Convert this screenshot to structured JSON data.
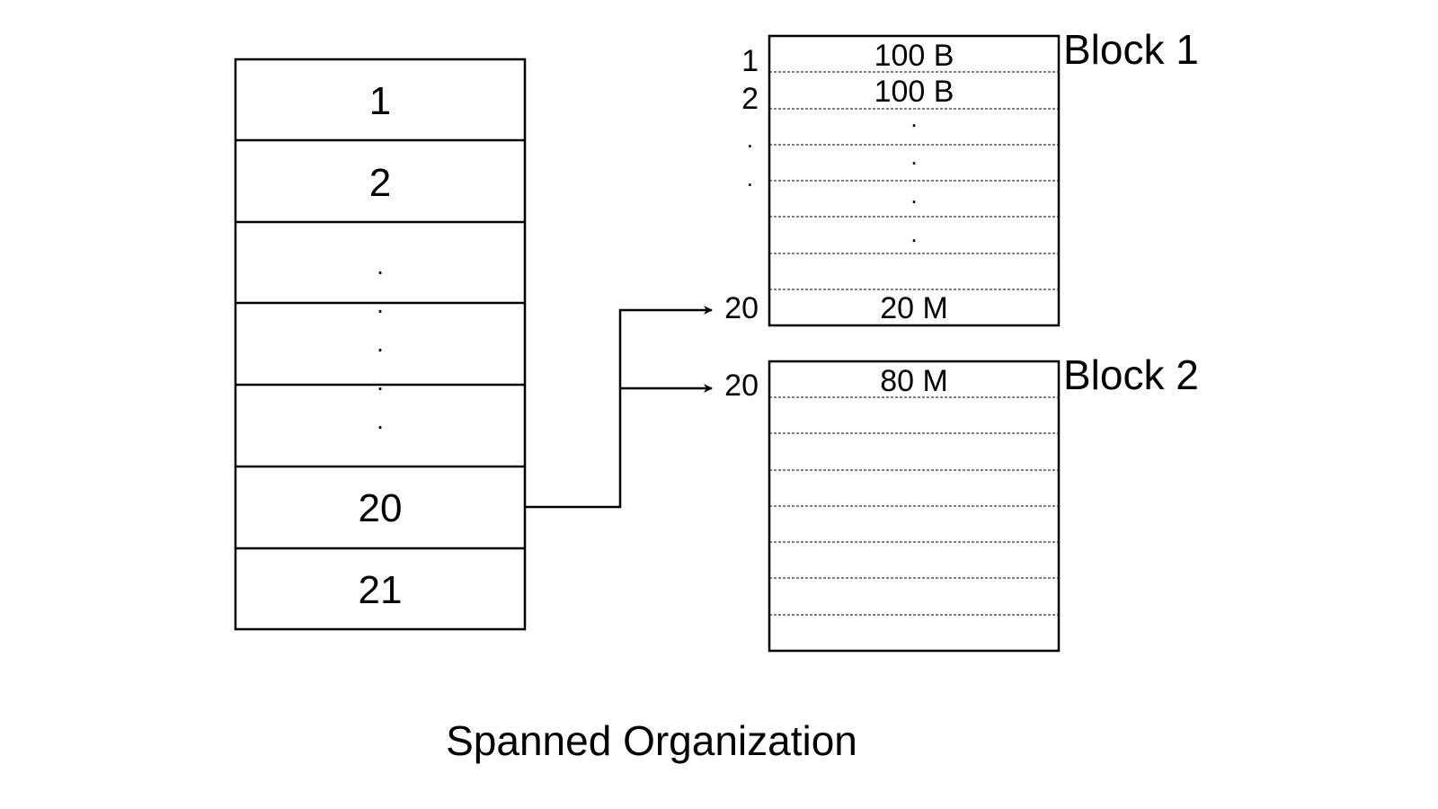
{
  "title": "Spanned Organization",
  "file": {
    "records": [
      {
        "label": "1"
      },
      {
        "label": "2"
      },
      {
        "label": "."
      },
      {
        "label": "."
      },
      {
        "label": "."
      },
      {
        "label": "."
      },
      {
        "label": "."
      },
      {
        "label": "20"
      },
      {
        "label": "21"
      }
    ]
  },
  "block1": {
    "name": "Block 1",
    "row_numbers": [
      "1",
      "2",
      ".",
      ".",
      "20"
    ],
    "cells": [
      "100 B",
      "100 B",
      ".",
      ".",
      ".",
      ".",
      "",
      "20 M"
    ]
  },
  "block2": {
    "name": "Block 2",
    "row_number": "20",
    "cells": [
      "80 M",
      "",
      "",
      "",
      "",
      "",
      "",
      ""
    ]
  },
  "colors": {
    "stroke": "#000000",
    "background": "#ffffff"
  }
}
